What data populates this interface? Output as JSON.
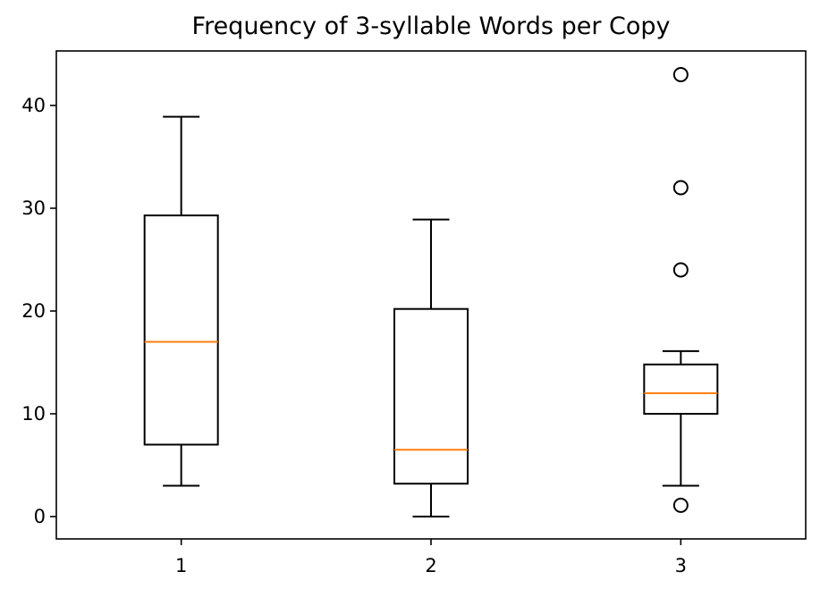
{
  "chart_data": {
    "type": "boxplot",
    "title": "Frequency of 3-syllable Words per Copy",
    "xlabel": "",
    "ylabel": "",
    "ylim": [
      -2,
      45
    ],
    "yticks": [
      0,
      10,
      20,
      30,
      40
    ],
    "categories": [
      "1",
      "2",
      "3"
    ],
    "boxes": [
      {
        "label": "1",
        "whisker_low": 3,
        "q1": 7,
        "median": 17,
        "q3": 29.3,
        "whisker_high": 38.9,
        "outliers": []
      },
      {
        "label": "2",
        "whisker_low": 0,
        "q1": 3.2,
        "median": 6.5,
        "q3": 20.2,
        "whisker_high": 28.9,
        "outliers": []
      },
      {
        "label": "3",
        "whisker_low": 3,
        "q1": 10,
        "median": 12,
        "q3": 14.8,
        "whisker_high": 16.1,
        "outliers": [
          1.1,
          24,
          32,
          43
        ]
      }
    ],
    "colors": {
      "box": "#000000",
      "median": "#ff7f0e",
      "outlier": "#000000"
    },
    "grid": false
  }
}
